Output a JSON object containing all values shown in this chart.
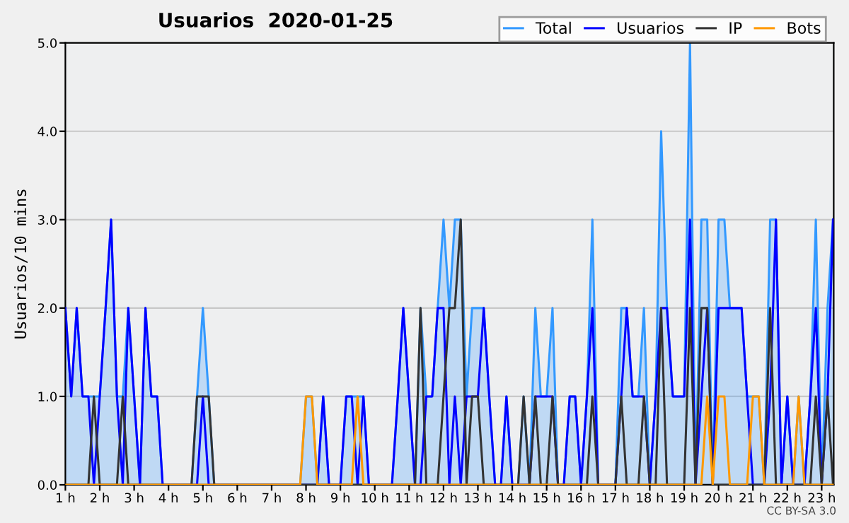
{
  "chart_data": {
    "type": "line",
    "title": "Usuarios  2020-01-25",
    "ylabel": "Usuarios/10 mins",
    "annotations": [
      "CC BY-SA 3.0"
    ],
    "x": [
      1,
      1.17,
      1.33,
      1.5,
      1.67,
      1.83,
      2,
      2.17,
      2.33,
      2.5,
      2.67,
      2.83,
      3,
      3.17,
      3.33,
      3.5,
      3.67,
      3.83,
      4,
      4.17,
      4.33,
      4.5,
      4.67,
      4.83,
      5,
      5.17,
      5.33,
      5.5,
      5.67,
      5.83,
      6,
      6.17,
      6.33,
      6.5,
      6.67,
      6.83,
      7,
      7.17,
      7.33,
      7.5,
      7.67,
      7.83,
      8,
      8.17,
      8.33,
      8.5,
      8.67,
      8.83,
      9,
      9.17,
      9.33,
      9.5,
      9.67,
      9.83,
      10,
      10.17,
      10.33,
      10.5,
      10.67,
      10.83,
      11,
      11.17,
      11.33,
      11.5,
      11.67,
      11.83,
      12,
      12.17,
      12.33,
      12.5,
      12.67,
      12.83,
      13,
      13.17,
      13.33,
      13.5,
      13.67,
      13.83,
      14,
      14.17,
      14.33,
      14.5,
      14.67,
      14.83,
      15,
      15.17,
      15.33,
      15.5,
      15.67,
      15.83,
      16,
      16.17,
      16.33,
      16.5,
      16.67,
      16.83,
      17,
      17.17,
      17.33,
      17.5,
      17.67,
      17.83,
      18,
      18.17,
      18.33,
      18.5,
      18.67,
      18.83,
      19,
      19.17,
      19.33,
      19.5,
      19.67,
      19.83,
      20,
      20.17,
      20.33,
      20.5,
      20.67,
      20.83,
      21,
      21.17,
      21.33,
      21.5,
      21.67,
      21.83,
      22,
      22.17,
      22.33,
      22.5,
      22.67,
      22.83,
      23,
      23.17,
      23.33
    ],
    "series": [
      {
        "name": "Total",
        "type": "area",
        "color": "#3399ff",
        "values": [
          2,
          1,
          2,
          1,
          1,
          1,
          1,
          2,
          3,
          1,
          1,
          2,
          1,
          0,
          2,
          1,
          1,
          0,
          0,
          0,
          0,
          0,
          0,
          1,
          2,
          1,
          0,
          0,
          0,
          0,
          0,
          0,
          0,
          0,
          0,
          0,
          0,
          0,
          0,
          0,
          0,
          0,
          1,
          1,
          0,
          1,
          0,
          0,
          0,
          1,
          1,
          1,
          1,
          0,
          0,
          0,
          0,
          0,
          1,
          2,
          1,
          0,
          2,
          1,
          1,
          2,
          3,
          2,
          3,
          3,
          1,
          2,
          2,
          2,
          1,
          0,
          0,
          1,
          0,
          0,
          1,
          0,
          2,
          1,
          1,
          2,
          0,
          0,
          1,
          1,
          0,
          1,
          3,
          0,
          0,
          0,
          0,
          2,
          2,
          1,
          1,
          2,
          0,
          1,
          4,
          2,
          1,
          1,
          1,
          5,
          0,
          3,
          3,
          0,
          3,
          3,
          2,
          2,
          2,
          1,
          1,
          1,
          0,
          3,
          3,
          0,
          1,
          0,
          1,
          0,
          1,
          3,
          0,
          2,
          3
        ]
      },
      {
        "name": "Usuarios",
        "color": "#0000ff",
        "values": [
          2,
          1,
          2,
          1,
          1,
          0,
          1,
          2,
          3,
          1,
          0,
          2,
          1,
          0,
          2,
          1,
          1,
          0,
          0,
          0,
          0,
          0,
          0,
          0,
          1,
          0,
          0,
          0,
          0,
          0,
          0,
          0,
          0,
          0,
          0,
          0,
          0,
          0,
          0,
          0,
          0,
          0,
          0,
          0,
          0,
          1,
          0,
          0,
          0,
          1,
          1,
          0,
          1,
          0,
          0,
          0,
          0,
          0,
          1,
          2,
          1,
          0,
          0,
          1,
          1,
          2,
          2,
          0,
          1,
          0,
          1,
          1,
          1,
          2,
          1,
          0,
          0,
          1,
          0,
          0,
          0,
          0,
          1,
          1,
          1,
          1,
          0,
          0,
          1,
          1,
          0,
          1,
          2,
          0,
          0,
          0,
          0,
          1,
          2,
          1,
          1,
          1,
          0,
          1,
          2,
          2,
          1,
          1,
          1,
          3,
          0,
          1,
          2,
          0,
          2,
          2,
          2,
          2,
          2,
          1,
          0,
          0,
          0,
          1,
          3,
          0,
          1,
          0,
          0,
          0,
          1,
          2,
          0,
          1,
          3
        ]
      },
      {
        "name": "IP",
        "color": "#333333",
        "values": [
          0,
          0,
          0,
          0,
          0,
          1,
          0,
          0,
          0,
          0,
          1,
          0,
          0,
          0,
          0,
          0,
          0,
          0,
          0,
          0,
          0,
          0,
          0,
          1,
          1,
          1,
          0,
          0,
          0,
          0,
          0,
          0,
          0,
          0,
          0,
          0,
          0,
          0,
          0,
          0,
          0,
          0,
          0,
          0,
          0,
          0,
          0,
          0,
          0,
          0,
          0,
          0,
          0,
          0,
          0,
          0,
          0,
          0,
          0,
          0,
          0,
          0,
          2,
          0,
          0,
          0,
          1,
          2,
          2,
          3,
          0,
          1,
          1,
          0,
          0,
          0,
          0,
          0,
          0,
          0,
          1,
          0,
          1,
          0,
          0,
          1,
          0,
          0,
          0,
          0,
          0,
          0,
          1,
          0,
          0,
          0,
          0,
          1,
          0,
          0,
          0,
          1,
          0,
          0,
          2,
          0,
          0,
          0,
          0,
          2,
          0,
          2,
          2,
          0,
          0,
          0,
          0,
          0,
          0,
          0,
          0,
          0,
          0,
          2,
          0,
          0,
          0,
          0,
          0,
          0,
          0,
          1,
          0,
          1,
          0
        ]
      },
      {
        "name": "Bots",
        "color": "#ff9900",
        "values": [
          0,
          0,
          0,
          0,
          0,
          0,
          0,
          0,
          0,
          0,
          0,
          0,
          0,
          0,
          0,
          0,
          0,
          0,
          0,
          0,
          0,
          0,
          0,
          0,
          0,
          0,
          0,
          0,
          0,
          0,
          0,
          0,
          0,
          0,
          0,
          0,
          0,
          0,
          0,
          0,
          0,
          0,
          1,
          1,
          0,
          0,
          0,
          0,
          0,
          0,
          0,
          1,
          0,
          0,
          0,
          0,
          0,
          0,
          0,
          0,
          0,
          0,
          0,
          0,
          0,
          0,
          0,
          0,
          0,
          0,
          0,
          0,
          0,
          0,
          0,
          0,
          0,
          0,
          0,
          0,
          0,
          0,
          0,
          0,
          0,
          0,
          0,
          0,
          0,
          0,
          0,
          0,
          0,
          0,
          0,
          0,
          0,
          0,
          0,
          0,
          0,
          0,
          0,
          0,
          0,
          0,
          0,
          0,
          0,
          0,
          0,
          0,
          1,
          0,
          1,
          1,
          0,
          0,
          0,
          0,
          1,
          1,
          0,
          0,
          0,
          0,
          0,
          0,
          1,
          0,
          0,
          0,
          0,
          0,
          0
        ]
      }
    ],
    "xlim": [
      1,
      23.35
    ],
    "xticks": [
      {
        "value": 1,
        "label": "1 h"
      },
      {
        "value": 2,
        "label": "2 h"
      },
      {
        "value": 3,
        "label": "3 h"
      },
      {
        "value": 4,
        "label": "4 h"
      },
      {
        "value": 5,
        "label": "5 h"
      },
      {
        "value": 6,
        "label": "6 h"
      },
      {
        "value": 7,
        "label": "7 h"
      },
      {
        "value": 8,
        "label": "8 h"
      },
      {
        "value": 9,
        "label": "9 h"
      },
      {
        "value": 10,
        "label": "10 h"
      },
      {
        "value": 11,
        "label": "11 h"
      },
      {
        "value": 12,
        "label": "12 h"
      },
      {
        "value": 13,
        "label": "13 h"
      },
      {
        "value": 14,
        "label": "14 h"
      },
      {
        "value": 15,
        "label": "15 h"
      },
      {
        "value": 16,
        "label": "16 h"
      },
      {
        "value": 17,
        "label": "17 h"
      },
      {
        "value": 18,
        "label": "18 h"
      },
      {
        "value": 19,
        "label": "19 h"
      },
      {
        "value": 20,
        "label": "20 h"
      },
      {
        "value": 21,
        "label": "21 h"
      },
      {
        "value": 22,
        "label": "22 h"
      },
      {
        "value": 23,
        "label": "23 h"
      }
    ],
    "ylim": [
      0,
      5
    ],
    "yticks": [
      {
        "value": 0,
        "label": "0.0"
      },
      {
        "value": 1,
        "label": "1.0"
      },
      {
        "value": 2,
        "label": "2.0"
      },
      {
        "value": 3,
        "label": "3.0"
      },
      {
        "value": 4,
        "label": "4.0"
      },
      {
        "value": 5,
        "label": "5.0"
      }
    ],
    "grid": "y",
    "legend": "top right",
    "marker": "none",
    "line_style": "solid"
  }
}
